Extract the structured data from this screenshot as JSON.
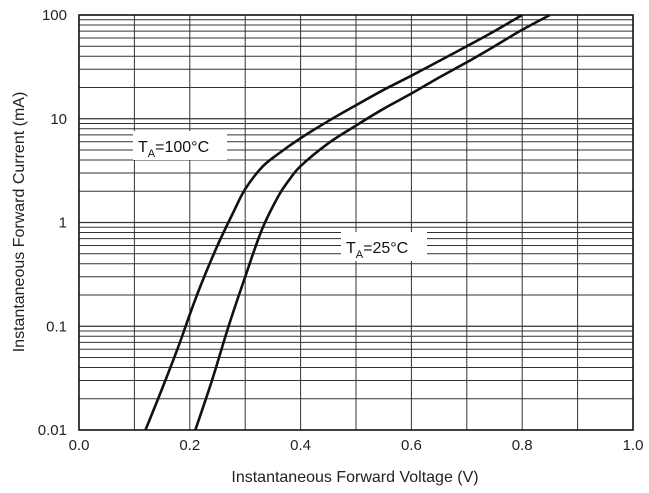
{
  "chart_data": {
    "type": "line",
    "title": "",
    "xlabel": "Instantaneous Forward Voltage (V)",
    "ylabel": "Instantaneous Forward Current (mA)",
    "xlim": [
      0.0,
      1.0
    ],
    "ylim": [
      0.01,
      100
    ],
    "y_scale": "log",
    "grid": true,
    "x_ticks": [
      "0.0",
      "0.2",
      "0.4",
      "0.6",
      "0.8",
      "1.0"
    ],
    "y_ticks": [
      "0.01",
      "0.1",
      "1",
      "10",
      "100"
    ],
    "series": [
      {
        "name": "TA=100°C",
        "label_main": "T",
        "label_sub": "A",
        "label_rest": "=100°C",
        "x": [
          0.12,
          0.15,
          0.18,
          0.2,
          0.22,
          0.25,
          0.28,
          0.3,
          0.33,
          0.36,
          0.4,
          0.45,
          0.5,
          0.55,
          0.6,
          0.65,
          0.7,
          0.75,
          0.8
        ],
        "y": [
          0.01,
          0.025,
          0.065,
          0.13,
          0.25,
          0.6,
          1.3,
          2.1,
          3.4,
          4.6,
          6.5,
          9.5,
          13.5,
          19,
          26,
          36,
          50,
          70,
          100
        ]
      },
      {
        "name": "TA=25°C",
        "label_main": "T",
        "label_sub": "A",
        "label_rest": "=25°C",
        "x": [
          0.21,
          0.24,
          0.27,
          0.3,
          0.33,
          0.36,
          0.38,
          0.4,
          0.45,
          0.5,
          0.55,
          0.6,
          0.65,
          0.7,
          0.75,
          0.8,
          0.85
        ],
        "y": [
          0.01,
          0.03,
          0.1,
          0.3,
          0.85,
          1.8,
          2.6,
          3.5,
          5.8,
          8.6,
          12.5,
          17.5,
          25,
          35,
          50,
          72,
          100
        ]
      }
    ],
    "colors": {
      "curve": "#111111",
      "grid": "#333333",
      "frame": "#111111"
    }
  }
}
